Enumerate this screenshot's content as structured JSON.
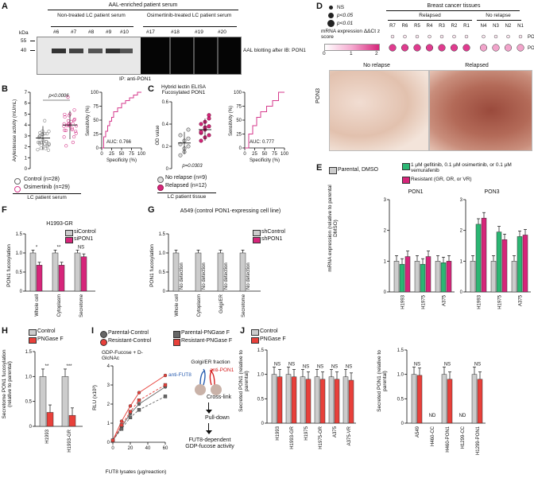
{
  "panel_labels": [
    "A",
    "B",
    "C",
    "D",
    "E",
    "F",
    "G",
    "H",
    "I",
    "J"
  ],
  "A": {
    "header": "AAL-enriched patient serum",
    "group1": "Non-treated LC patient serum",
    "group2": "Osimertinib-treated LC patient serum",
    "lanes": [
      "#6",
      "#7",
      "#8",
      "#9",
      "#10",
      "#17",
      "#18",
      "#19",
      "#20"
    ],
    "kda": "kDa",
    "markers": [
      "55",
      "40"
    ],
    "right_label": "AAL blotting after IB: PON1",
    "bottom_label": "IP: anti-PON1"
  },
  "B": {
    "chart_data": [
      {
        "type": "scatter",
        "ylabel": "Arylesterase activity (mU/mL)",
        "ylim": [
          0,
          7
        ],
        "yticks": [
          "0",
          "1",
          "2",
          "3",
          "4",
          "5",
          "6",
          "7"
        ],
        "pvalue": "p<0.0006",
        "legend": [
          "Control (n=28)",
          "Osimertinib (n=29)"
        ],
        "xlabel": "LC patient serum",
        "series": [
          {
            "name": "Control (n=28)",
            "mean": 2.8,
            "sd": 1.1
          },
          {
            "name": "Osimertinib (n=29)",
            "mean": 4.0,
            "sd": 1.3
          }
        ]
      },
      {
        "type": "line",
        "ylabel": "Sensitivity (%)",
        "xlabel": "Specificity (%)",
        "xticks": [
          "0",
          "25",
          "50",
          "75",
          "100"
        ],
        "yticks": [
          "0",
          "25",
          "50",
          "75",
          "100"
        ],
        "auc": "AUC: 0.766",
        "x": [
          0,
          5,
          10,
          15,
          20,
          25,
          30,
          40,
          50,
          60,
          70,
          80,
          90,
          100
        ],
        "y": [
          0,
          20,
          30,
          40,
          48,
          55,
          65,
          72,
          80,
          85,
          90,
          95,
          100,
          100
        ]
      }
    ]
  },
  "C": {
    "title": "Hybrid lectin ELISA Fucosylated PON1",
    "chart_data": [
      {
        "type": "scatter",
        "ylabel": "OD value",
        "ylim": [
          0,
          0.6
        ],
        "yticks": [
          "0",
          "0.2",
          "0.4",
          "0.6"
        ],
        "pvalue": "p=0.0303",
        "legend": [
          "No relapse (n=9)",
          "Relapsed (n=12)"
        ],
        "xlabel": "LC patient tissue",
        "series": [
          {
            "name": "No relapse (n=9)",
            "mean": 0.23,
            "sd": 0.1
          },
          {
            "name": "Relapsed (n=12)",
            "mean": 0.35,
            "sd": 0.1
          }
        ]
      },
      {
        "type": "line",
        "ylabel": "Sensitivity (%)",
        "xlabel": "Specificity (%)",
        "xticks": [
          "0",
          "25",
          "50",
          "75",
          "100"
        ],
        "yticks": [
          "0",
          "25",
          "50",
          "75",
          "100"
        ],
        "auc": "AUC: 0.777",
        "x": [
          0,
          10,
          20,
          30,
          40,
          55,
          70,
          85,
          100
        ],
        "y": [
          0,
          25,
          40,
          55,
          65,
          75,
          85,
          100,
          100
        ]
      }
    ]
  },
  "D": {
    "title": "Breast cancer tissues",
    "legend": [
      "NS",
      "p<0.05",
      "p<0.01"
    ],
    "groups": [
      "Relapsed",
      "No relapse"
    ],
    "samples": [
      "R7",
      "R6",
      "R5",
      "R4",
      "R3",
      "R2",
      "R1",
      "N4",
      "N3",
      "N2",
      "N1"
    ],
    "rows": [
      "PON1",
      "PON3"
    ],
    "scale_label": "mRNA expression ΔΔCt z score",
    "scale_ticks": [
      "0",
      "1",
      "2"
    ],
    "image_labels": [
      "No relapse",
      "Relapsed"
    ],
    "side_label": "PON3"
  },
  "E": {
    "legend": [
      "Parental, DMSO",
      "1 µM gefitinib, 0.1 µM osimertinib, or 0.1 µM vemurafenib",
      "Resistant (GR, OR, or VR)"
    ],
    "colors": [
      "#cccccc",
      "#2bb673",
      "#d6257a"
    ],
    "ylabel": "mRNA expression (relative to parental DMSO)",
    "chart_data": [
      {
        "type": "bar",
        "title": "PON1",
        "categories": [
          "H1993",
          "H1975",
          "A375"
        ],
        "ylim": [
          0,
          3
        ],
        "yticks": [
          "0",
          "1",
          "2",
          "3"
        ],
        "series": [
          {
            "values": [
              1.0,
              1.0,
              1.0
            ]
          },
          {
            "values": [
              0.9,
              0.9,
              0.95
            ]
          },
          {
            "values": [
              1.15,
              1.15,
              1.0
            ]
          }
        ]
      },
      {
        "type": "bar",
        "title": "PON3",
        "categories": [
          "H1993",
          "H1975",
          "A375"
        ],
        "ylim": [
          0,
          3
        ],
        "yticks": [
          "0",
          "1",
          "2",
          "3"
        ],
        "series": [
          {
            "values": [
              1.0,
              1.0,
              1.0
            ]
          },
          {
            "values": [
              2.2,
              1.95,
              1.8
            ]
          },
          {
            "values": [
              2.4,
              1.7,
              1.85
            ]
          }
        ]
      }
    ]
  },
  "F": {
    "title": "H1993-GR",
    "legend": [
      "siControl",
      "siPON1"
    ],
    "ylabel": "PON1 fucosylation",
    "chart_data": {
      "type": "bar",
      "categories": [
        "Whole cell",
        "Cytoplasm",
        "Secretome"
      ],
      "ylim": [
        0,
        1.5
      ],
      "yticks": [
        "0",
        "0.5",
        "1.0",
        "1.5"
      ],
      "series": [
        {
          "name": "siControl",
          "values": [
            1.0,
            1.0,
            1.0
          ]
        },
        {
          "name": "siPON1",
          "values": [
            0.68,
            0.68,
            0.9
          ]
        }
      ],
      "annotations": [
        "*",
        "**",
        "NS"
      ]
    }
  },
  "G": {
    "title": "A549 (control PON1-expressing cell line)",
    "legend": [
      "shControl",
      "shPON1"
    ],
    "ylabel": "PON1 fucosylation",
    "no_detection": "No detection",
    "chart_data": {
      "type": "bar",
      "categories": [
        "Whole cell",
        "Cytoplasm",
        "Golgi/ER",
        "Secretome"
      ],
      "ylim": [
        0,
        1.5
      ],
      "yticks": [
        "0",
        "0.5",
        "1.0",
        "1.5"
      ],
      "series": [
        {
          "name": "shControl",
          "values": [
            1.0,
            1.0,
            1.0,
            1.0
          ]
        }
      ]
    }
  },
  "H": {
    "legend": [
      "Control",
      "PNGase F"
    ],
    "ylabel": "Secretome PON1 fucosylation (relative to parental)",
    "chart_data": {
      "type": "bar",
      "categories": [
        "H1993",
        "H1993-GR"
      ],
      "ylim": [
        0,
        1.5
      ],
      "yticks": [
        "0",
        "0.5",
        "1.0",
        "1.5"
      ],
      "series": [
        {
          "name": "Control",
          "values": [
            1.0,
            1.0
          ]
        },
        {
          "name": "PNGase F",
          "values": [
            0.28,
            0.22
          ]
        }
      ],
      "annotations": [
        "**",
        "***"
      ]
    }
  },
  "I": {
    "legend": [
      "Parental-Control",
      "Resistant-Control",
      "Parental-PNGase F",
      "Resistant-PNGase F"
    ],
    "substrate": "GDP-Fucose + D-GlcNAc",
    "ylabel": "RLU (x10³)",
    "xlabel": "FUT8 lysates (µg/reaction)",
    "chart_data": {
      "type": "line",
      "x": [
        0,
        10,
        20,
        30,
        60
      ],
      "xticks": [
        "0",
        "20",
        "40",
        "60"
      ],
      "ylim": [
        0,
        4
      ],
      "yticks": [
        "0",
        "1",
        "2",
        "3",
        "4"
      ],
      "series": [
        {
          "name": "Parental-Control",
          "values": [
            0.1,
            0.8,
            1.5,
            2.0,
            2.9
          ]
        },
        {
          "name": "Resistant-Control",
          "values": [
            0.1,
            1.1,
            1.9,
            2.6,
            3.5
          ]
        },
        {
          "name": "Parental-PNGase F",
          "values": [
            0.1,
            0.7,
            1.3,
            1.7,
            2.4
          ]
        },
        {
          "name": "Resistant-PNGase F",
          "values": [
            0.1,
            0.9,
            1.6,
            2.2,
            3.0
          ]
        }
      ]
    },
    "diagram": {
      "fraction": "Golgi/ER fraction",
      "anti_fut8": "anti-FUT8",
      "anti_pon1": "anti-PON1",
      "crosslink": "Cross-link",
      "pulldown": "Pull-down",
      "result": "FUT8-dependent GDP-fucose activity"
    }
  },
  "J": {
    "legend": [
      "Control",
      "PNGase F"
    ],
    "ylabel": "Secreted PON1 (relative to parental)",
    "nd": "ND",
    "chart_data": [
      {
        "type": "bar",
        "categories": [
          "H1993",
          "H1993-GR",
          "H1975",
          "H1975-OR",
          "A375",
          "A375-VR"
        ],
        "ylim": [
          0,
          1.5
        ],
        "yticks": [
          "0",
          "0.5",
          "1.0",
          "1.5"
        ],
        "series": [
          {
            "name": "Control",
            "values": [
              1.0,
              1.0,
              0.95,
              0.95,
              0.95,
              0.95
            ]
          },
          {
            "name": "PNGase F",
            "values": [
              0.95,
              0.95,
              0.9,
              0.9,
              0.9,
              0.88
            ]
          }
        ],
        "annotations": [
          "NS",
          "NS",
          "NS",
          "NS",
          "NS",
          "NS"
        ]
      },
      {
        "type": "bar",
        "categories": [
          "A549",
          "H460-CC",
          "H460-PON1",
          "H1299-CC",
          "H1299-PON1"
        ],
        "ylim": [
          0,
          1.5
        ],
        "yticks": [
          "0",
          "0.5",
          "1.0",
          "1.5"
        ],
        "series": [
          {
            "name": "Control",
            "values": [
              1.0,
              0,
              1.0,
              0,
              1.0
            ]
          },
          {
            "name": "PNGase F",
            "values": [
              0.98,
              0,
              0.9,
              0,
              0.9
            ]
          }
        ],
        "annotations": [
          "NS",
          "ND",
          "NS",
          "ND",
          "NS"
        ]
      }
    ]
  }
}
